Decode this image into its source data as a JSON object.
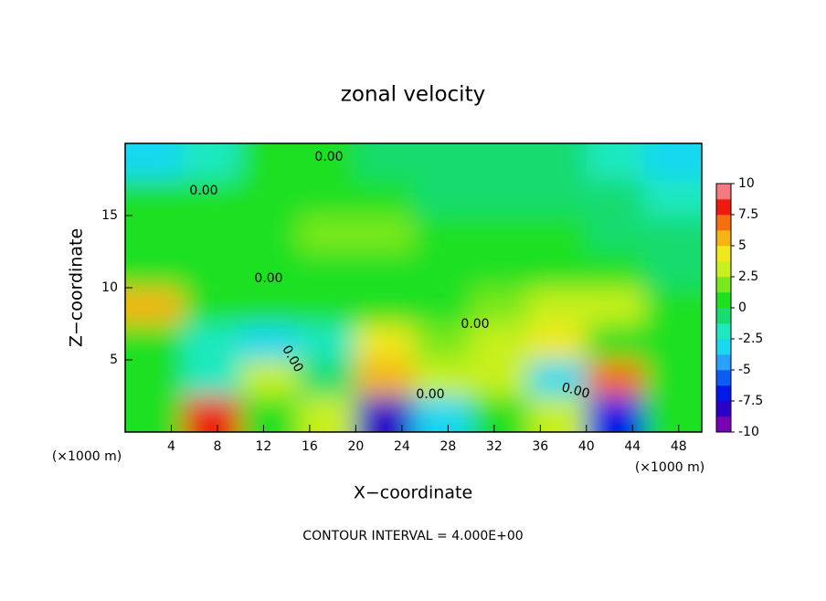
{
  "chart_data": {
    "type": "contour",
    "title": "zonal velocity",
    "x_label": "X−coordinate",
    "y_label": "Z−coordinate",
    "unit_labels": [
      "(×1000 m)",
      "(×1000 m)"
    ],
    "note": "CONTOUR INTERVAL = 4.000E+00",
    "contour_labels": [
      "0.00",
      "0.00",
      "0.00",
      "0.00",
      "0.00",
      "0.00",
      "0.00"
    ],
    "xlim": [
      0,
      50
    ],
    "ylim": [
      0,
      20
    ],
    "xticks": [
      4,
      8,
      12,
      16,
      20,
      24,
      28,
      32,
      36,
      40,
      44,
      48
    ],
    "yticks": [
      5,
      10,
      15
    ],
    "z": [
      [
        0,
        8,
        0,
        3,
        -8,
        -3,
        1,
        3,
        -7,
        1
      ],
      [
        0,
        -2,
        3,
        -1,
        6,
        3,
        3,
        -3,
        7,
        0
      ],
      [
        1,
        -2,
        -3,
        -2,
        4,
        2,
        3,
        4,
        1,
        0
      ],
      [
        5,
        1,
        1,
        0,
        1,
        1,
        2,
        3,
        3,
        0
      ],
      [
        1,
        1,
        0,
        1,
        1,
        0,
        0,
        1,
        1,
        -1
      ],
      [
        1,
        1,
        1,
        2,
        2,
        0,
        0,
        0,
        -1,
        -1
      ],
      [
        0,
        0,
        1,
        1,
        0,
        -1,
        -1,
        -1,
        -1,
        -2
      ],
      [
        -3,
        -2,
        0,
        0,
        -1,
        -1,
        -1,
        -1,
        -2,
        -3
      ]
    ],
    "colorbar": {
      "lim": [
        -10,
        10
      ],
      "ticks": [
        10,
        7.5,
        5,
        2.5,
        0,
        -2.5,
        -5,
        -7.5,
        -10
      ],
      "colors": [
        "#7a00b8",
        "#2a00c8",
        "#0018e8",
        "#0a5cf5",
        "#2aa0ff",
        "#19d8f0",
        "#1ee8c0",
        "#18dc70",
        "#1ee020",
        "#7ae81e",
        "#c8f01e",
        "#f0e81a",
        "#f5b414",
        "#f56e10",
        "#ee1a10",
        "#f57a80"
      ]
    }
  }
}
